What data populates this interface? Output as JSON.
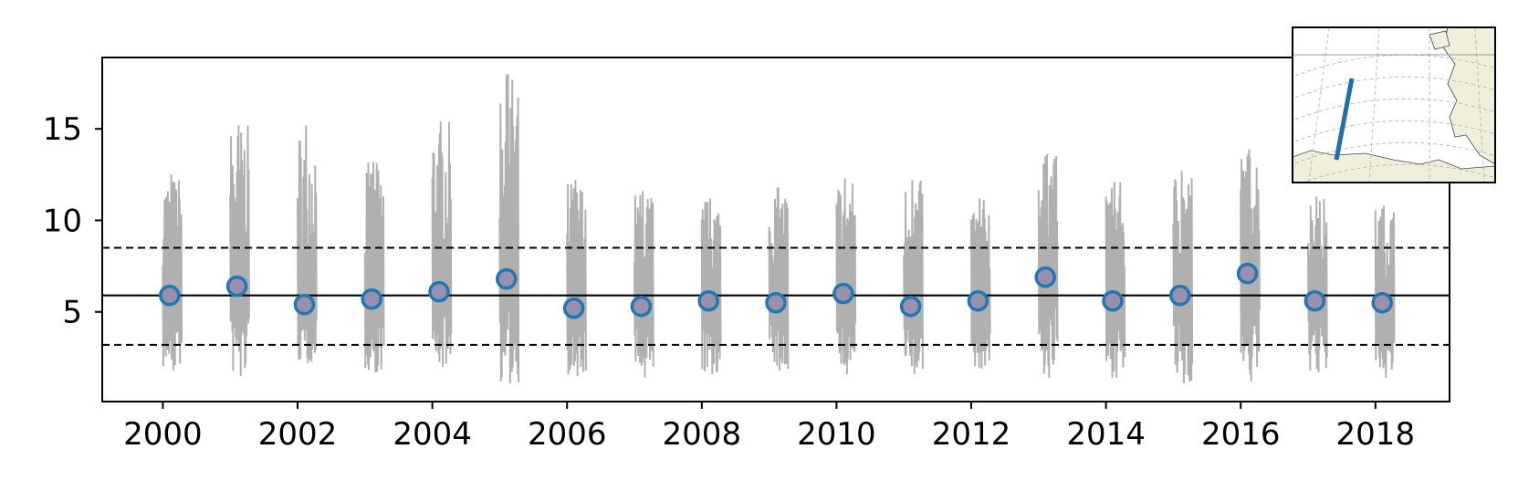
{
  "chart_data": {
    "type": "scatter",
    "title": "",
    "xlabel": "",
    "ylabel": "",
    "xlim": [
      1999.1,
      2019.1
    ],
    "ylim": [
      0.1,
      18.9
    ],
    "x_ticks": [
      "2000",
      "2002",
      "2004",
      "2006",
      "2008",
      "2010",
      "2012",
      "2014",
      "2016",
      "2018"
    ],
    "x_tick_values": [
      2000,
      2002,
      2004,
      2006,
      2008,
      2010,
      2012,
      2014,
      2016,
      2018
    ],
    "y_ticks": [
      "5",
      "10",
      "15"
    ],
    "y_tick_values": [
      5,
      10,
      15
    ],
    "grid": false,
    "reference_lines": {
      "mean": 5.9,
      "lower": 3.2,
      "upper": 8.5
    },
    "annual_means": {
      "x": [
        2000.1,
        2001.1,
        2002.1,
        2003.1,
        2004.1,
        2005.1,
        2006.1,
        2007.1,
        2008.1,
        2009.1,
        2010.1,
        2011.1,
        2012.1,
        2013.1,
        2014.1,
        2015.1,
        2016.1,
        2017.1,
        2018.1
      ],
      "y": [
        5.9,
        6.4,
        5.4,
        5.7,
        6.1,
        6.8,
        5.2,
        5.3,
        5.6,
        5.5,
        6.0,
        5.3,
        5.6,
        6.9,
        5.6,
        5.9,
        7.1,
        5.6,
        5.5
      ]
    },
    "seasonal_series": {
      "x_center": [
        2000.1,
        2001.1,
        2002.1,
        2003.1,
        2004.1,
        2005.1,
        2006.1,
        2007.1,
        2008.1,
        2009.1,
        2010.1,
        2011.1,
        2012.1,
        2013.1,
        2014.1,
        2015.1,
        2016.1,
        2017.1,
        2018.1
      ],
      "max": [
        12.5,
        15.2,
        15.2,
        13.2,
        15.4,
        18.0,
        12.2,
        11.6,
        11.2,
        11.8,
        12.3,
        12.2,
        11.2,
        13.6,
        12.1,
        12.7,
        13.9,
        11.3,
        10.8
      ],
      "min": [
        1.8,
        1.5,
        2.2,
        1.7,
        2.0,
        1.1,
        1.5,
        1.4,
        1.6,
        1.8,
        1.6,
        1.6,
        1.9,
        1.4,
        1.4,
        1.1,
        1.2,
        1.7,
        1.4
      ]
    },
    "colors": {
      "series_line": "#b0b0b0",
      "marker_edge": "#1f77b4",
      "marker_fill": "#9a90ad",
      "reference_line": "#000000"
    },
    "inset_map": {
      "position": "top-right",
      "track_color": "#1f6fae",
      "land_color": "#efefdc",
      "graticule": true
    }
  }
}
